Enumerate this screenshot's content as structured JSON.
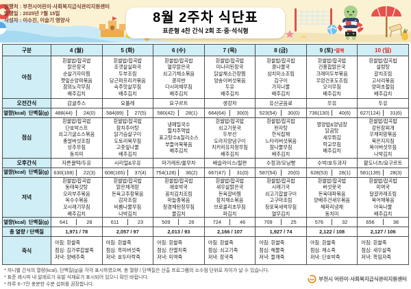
{
  "meta": {
    "publisher_line": "발행처 : 부천시어린이·사회복지급식관리지원센터",
    "date_line": "발행일 : 2025년 7월 15일",
    "author_line": "작성자 : 이수진, 이슬기 영양사"
  },
  "title": "8월 2주차 식단표",
  "subtitle": "표준형 4찬 간식 2회 조·중·석식형",
  "colors": {
    "accent_red": "#e8251d",
    "header_cyan": "#cfeef6",
    "banner_cream": "#fbf2d3",
    "logo_orange": "#f08300"
  },
  "icons": {
    "banner": [
      "lifebuoy-icon",
      "beachball-icon",
      "sandcastle-icon",
      "surfboard-icon",
      "volleyball-net-icon",
      "volleyball-icon",
      "starfish-icon",
      "seashell-icon",
      "turtle-mascot-icon",
      "beach-umbrella-icon",
      "beach-chair-icon",
      "pineapple-drink-icon"
    ],
    "footer": [
      "smiley-logo-icon"
    ]
  },
  "table": {
    "corner_label": "구분",
    "row_labels": {
      "breakfast": "아침",
      "am_snack": "오전간식",
      "energy": "열량(kcal)",
      "protein": "단백질(g)",
      "lunch": "점심",
      "pm_snack": "오후간식",
      "dinner": "저녁",
      "total": "총 열량 / 단백질",
      "porridge": "죽식"
    },
    "days": [
      {
        "label": "4 (월)",
        "special": "",
        "red": false,
        "breakfast": [
          "흰쌀밥/잡곡밥",
          "맑은장국",
          "순살가자미찜",
          "깻잎순양파볶음",
          "참외노각무침",
          "배추김치"
        ],
        "am_snack": "감귤주스",
        "breakfast_energy": "488(44)",
        "breakfast_protein": "24(0)",
        "lunch": [
          "흰쌀밥/잡곡밥",
          "단호박스프",
          "쇠고기굴소스볶음",
          "총알버섯조림",
          "상추무침",
          "동치미"
        ],
        "pm_snack": "자른꿀떡/두유",
        "lunch_energy": "630(168)",
        "lunch_protein": "22(3)",
        "dinner": [
          "흰쌀밥/잡곡밥",
          "동태쑥갓탕",
          "오리부추볶음",
          "옥수수볶음",
          "꼬시래기무침",
          "배추김치"
        ],
        "dinner_energy": "641",
        "dinner_protein": "28",
        "total": "1,971 / 78",
        "porridge": [
          "아침: 흰쌀죽",
          "점심: 김가루찹쌀죽",
          "저녁: 양배추죽"
        ]
      },
      {
        "label": "5 (화)",
        "special": "",
        "red": false,
        "breakfast": [
          "흰쌀밥/잡곡밥",
          "조갯살실파국",
          "두부조림",
          "당근파프리카볶음",
          "숙주맛살무침",
          "배추김치"
        ],
        "am_snack": "요플레",
        "breakfast_energy": "584(89)",
        "breakfast_protein": "27(5)",
        "lunch": [
          "흰쌀밥/잡곡밥",
          "참치추어탕",
          "닭가슴살구이",
          "도토리묵무침",
          "고춧잎나물",
          "배추김치"
        ],
        "pm_snack": "시리얼&우유",
        "lunch_energy": "608(165)",
        "lunch_protein": "37(4)",
        "dinner": [
          "흰쌀밥/잡곡밥",
          "맑은채개장",
          "돈육고추장볶음",
          "감자조림",
          "비름나물무침",
          "나박김치"
        ],
        "dinner_energy": "611",
        "dinner_protein": "23",
        "total": "2,057 / 97",
        "porridge": [
          "아침: 흰쌀죽",
          "점심: 흑미버섯죽",
          "저녁: 호두타락죽"
        ]
      },
      {
        "label": "6 (수)",
        "special": "",
        "red": false,
        "breakfast": [
          "흰쌀밥/잡곡밥",
          "열무맑은국",
          "쇠고기채소볶음",
          "콩자반",
          "다시마채무침",
          "배추김치"
        ],
        "am_snack": "요구르트",
        "breakfast_energy": "580(42)",
        "breakfast_protein": "28(1)",
        "lunch": [
          "냉메밀국수",
          "멸치주먹밥",
          "표고탕수&칠리소스",
          "부들어묵볶음",
          "배추김치"
        ],
        "pm_snack": "마가레트/율무차",
        "lunch_energy": "754(128)",
        "lunch_protein": "36(2)",
        "dinner": [
          "흰쌀밥/잡곡밥",
          "애호박국",
          "꽁치김치조림",
          "마늘종볶음",
          "청경채된장무침",
          "물김치"
        ],
        "dinner_energy": "509",
        "dinner_protein": "26",
        "total": "2,013 / 93",
        "porridge": [
          "아침: 흰쌀죽",
          "점심: 잔멸치죽",
          "저녁: 미역죽"
        ]
      },
      {
        "label": "7 (목)",
        "special": "",
        "red": false,
        "breakfast": [
          "흰쌀밥/잡곡밥",
          "미나리된장국",
          "닭살채소간장찜",
          "양송이버섯볶음",
          "두유",
          "배추김치"
        ],
        "am_snack": "생강차",
        "breakfast_energy": "664(64)",
        "breakfast_protein": "30(0)",
        "lunch": [
          "흰쌀밥/잡곡밥",
          "쇠고기뭇국",
          "두부선",
          "도라지양념구이",
          "치커리유자청무침",
          "배추김치"
        ],
        "pm_snack": "배슬라이스/절편",
        "lunch_energy": "667(47)",
        "lunch_protein": "31(0)",
        "dinner": [
          "흰쌀밥/잡곡밥",
          "새우살맑은국",
          "돈육갈비찜",
          "참치채소볶음",
          "브로콜리초무침",
          "파김치"
        ],
        "dinner_energy": "724",
        "dinner_protein": "46",
        "total": "2,166 / 107",
        "porridge": [
          "아침: 흰쌀죽",
          "점심: 쇠고기죽",
          "저녁: 장국죽"
        ]
      },
      {
        "label": "8 (금)",
        "special": "",
        "red": false,
        "breakfast": [
          "흰쌀밥/잡곡밥",
          "콩나물국",
          "삼치미소조림",
          "김구이",
          "가지나물",
          "배추김치"
        ],
        "am_snack": "유산균음료",
        "breakfast_energy": "523(54)",
        "breakfast_protein": "30(0)",
        "lunch": [
          "흰쌀밥/잡곡밥",
          "완자탕",
          "한식잡채",
          "느타리버섯볶음",
          "참나물무침",
          "배추김치"
        ],
        "pm_snack": "수정과/모닝빵",
        "lunch_energy": "587(54)",
        "lunch_protein": "20(0)",
        "dinner": [
          "흰쌀밥/잡곡밥",
          "시래기국",
          "쇠고기찹쌀구이",
          "고구마조림",
          "청포묵새싹무침",
          "열무김치"
        ],
        "dinner_energy": "709",
        "dinner_protein": "25",
        "total": "1,927 / 74",
        "porridge": [
          "아침: 흰쌀죽",
          "점심: 해물죽",
          "저녁: 들깨죽"
        ]
      },
      {
        "label": "9 (토)",
        "special": "*말복",
        "red": false,
        "breakfast": [
          "흰쌀밥/잡곡밥",
          "건홍합맑은국",
          "크래미두부볶음",
          "우엉건포도조림",
          "오이무침",
          "배추김치"
        ],
        "am_snack": "우유",
        "breakfast_energy": "736(130)",
        "breakfast_protein": "40(6)",
        "lunch": [
          "영양밥&양념장",
          "닭곰탕",
          "새우튀김",
          "락교무침",
          "배추김치"
        ],
        "pm_snack": "수박/호두과자",
        "lunch_energy": "628(53)",
        "lunch_protein": "28(1)",
        "dinner": [
          "흰쌀밥/잡곡밥",
          "버섯뭇국",
          "돈육대파볶음",
          "양배추건새우볶음",
          "해파리냉채",
          "동치미"
        ],
        "dinner_energy": "576",
        "dinner_protein": "32",
        "total": "2,122 / 108",
        "porridge": [
          "아침: 흰쌀죽",
          "점심: 채소죽",
          "저녁: 단호박죽"
        ]
      },
      {
        "label": "10 (일)",
        "special": "",
        "red": true,
        "breakfast": [
          "흰쌀밥/잡곡밥",
          "설렁탕",
          "갈치조림",
          "고사리볶음",
          "양파초절임",
          "배추김치"
        ],
        "am_snack": "두유",
        "breakfast_energy": "627(124)",
        "breakfast_protein": "31(6)",
        "lunch": [
          "흰쌀밥/잡곡밥",
          "강된장찌개",
          "우채피망볶음",
          "묵은지지짐",
          "목이버섯무침",
          "나박김치"
        ],
        "pm_snack": "팥도너츠/요구르트",
        "lunch_energy": "581(139)",
        "lunch_protein": "28(3)",
        "dinner": [
          "흰쌀밥/잡곡밥",
          "미역국",
          "달걀카레조림",
          "북어채볶음",
          "아욱나물",
          "배추김치"
        ],
        "dinner_energy": "656",
        "dinner_protein": "38",
        "total": "2,127 / 106",
        "porridge": [
          "아침: 흰쌀죽",
          "점심: 새우살죽",
          "저녁: 흑임자죽"
        ]
      }
    ]
  },
  "footnotes": [
    "* 끼니별 간식의 열량(kcal), 단백질(g)을 각각 표시하였으며, 총 열량 / 단백질은 산출 프로그램의 소수점 단위로 차이가 날 수 있습니다.",
    "* 표준 레시피 내 알레르기 유발 식재료가 표시되어 있으니 확인 바랍니다.",
    "* 하루 6~7잔 충분한 수분 섭취를 권장합니다."
  ],
  "footer": {
    "center_name": "부천시 어린이·사회복지급식관리지원센터"
  }
}
